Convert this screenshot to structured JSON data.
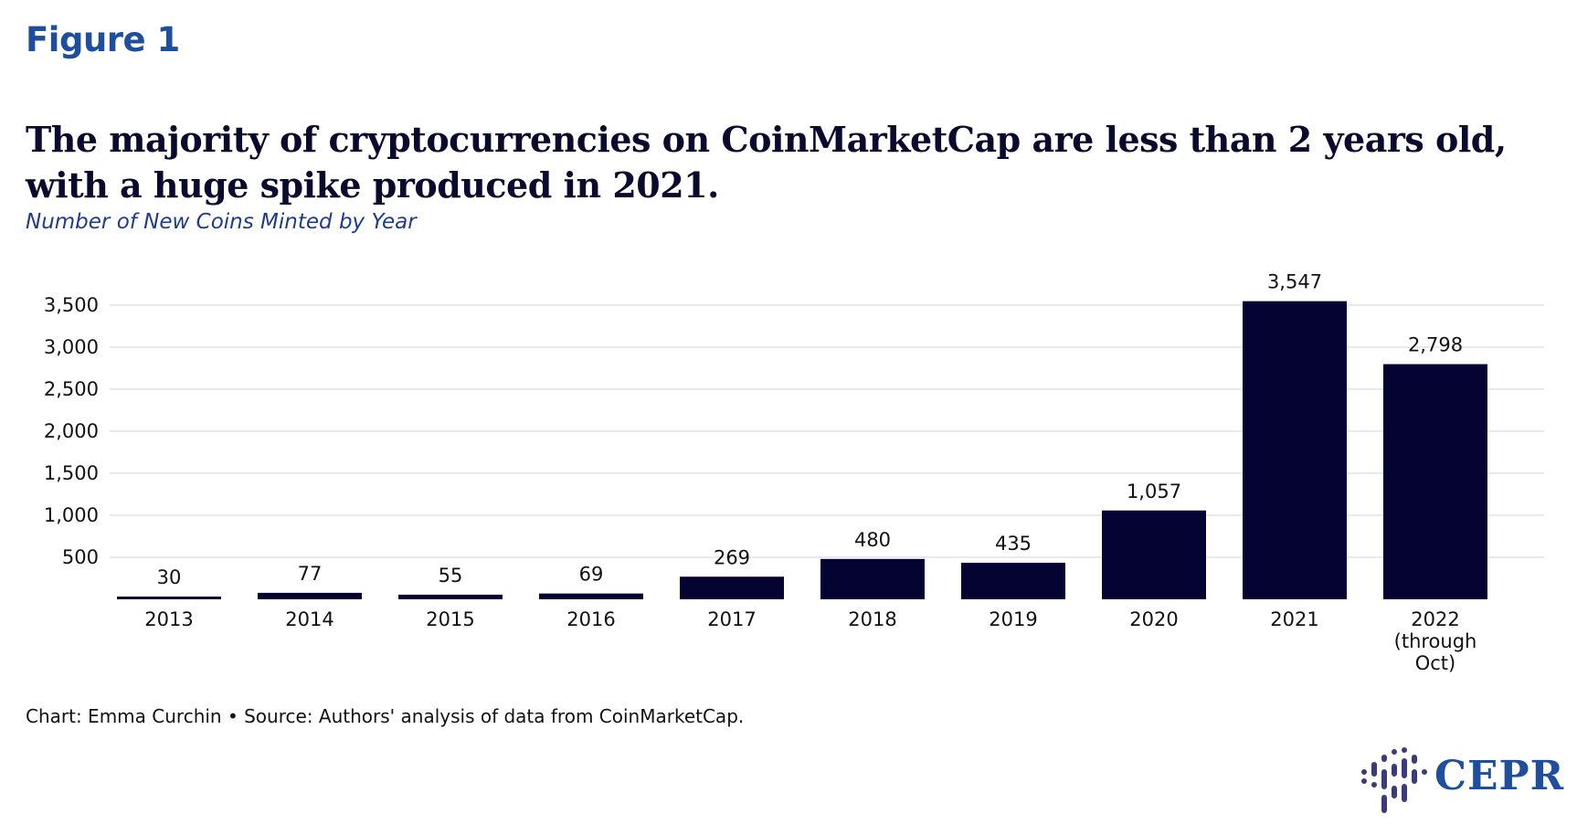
{
  "figure_label": "Figure 1",
  "title": "The majority of cryptocurrencies on CoinMarketCap are less than 2 years old, with a huge spike produced in 2021.",
  "subtitle": "Number of New Coins Minted by Year",
  "footer": "Chart: Emma Curchin • Source: Authors' analysis of data from CoinMarketCap.",
  "logo": {
    "text": "CEPR",
    "icon": "cepr-bars-logo-icon"
  },
  "colors": {
    "bar": "#040332",
    "accent": "#1f4e9c",
    "grid": "#e3e3e3"
  },
  "chart_data": {
    "type": "bar",
    "title": "The majority of cryptocurrencies on CoinMarketCap are less than 2 years old, with a huge spike produced in 2021.",
    "subtitle": "Number of New Coins Minted by Year",
    "categories": [
      "2013",
      "2014",
      "2015",
      "2016",
      "2017",
      "2018",
      "2019",
      "2020",
      "2021",
      "2022 (through Oct)"
    ],
    "values": [
      30,
      77,
      55,
      69,
      269,
      480,
      435,
      1057,
      3547,
      2798
    ],
    "value_labels": [
      "30",
      "77",
      "55",
      "69",
      "269",
      "480",
      "435",
      "1,057",
      "3,547",
      "2,798"
    ],
    "y_ticks": [
      500,
      1000,
      1500,
      2000,
      2500,
      3000,
      3500
    ],
    "y_tick_labels": [
      "500",
      "1,000",
      "1,500",
      "2,000",
      "2,500",
      "3,000",
      "3,500"
    ],
    "ylim": [
      0,
      3500
    ],
    "xlabel": "",
    "ylabel": "",
    "grid": true,
    "legend": "none"
  }
}
